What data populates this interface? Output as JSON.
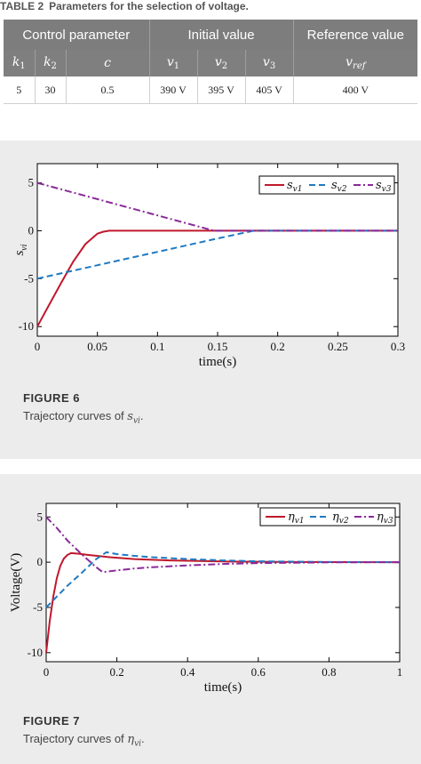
{
  "table": {
    "number": "TABLE 2",
    "title": "Parameters for the selection of voltage.",
    "group_headers": [
      "Control parameter",
      "Initial value",
      "Reference value"
    ],
    "symbols": {
      "k1": {
        "base": "k",
        "sub": "1"
      },
      "k2": {
        "base": "k",
        "sub": "2"
      },
      "c": {
        "base": "c",
        "sub": ""
      },
      "v1": {
        "base": "v",
        "sub": "1"
      },
      "v2": {
        "base": "v",
        "sub": "2"
      },
      "v3": {
        "base": "v",
        "sub": "3"
      },
      "vref": {
        "base": "v",
        "sub": "ref"
      }
    },
    "row": [
      "5",
      "30",
      "0.5",
      "390 V",
      "395 V",
      "405 V",
      "400 V"
    ]
  },
  "figure6": {
    "label": "FIGURE 6",
    "caption_prefix": "Trajectory curves of ",
    "caption_symbol": "s",
    "caption_sub": "vi",
    "caption_suffix": ".",
    "chart_data": {
      "type": "line",
      "xlabel": "time(s)",
      "ylabel": "s_vi",
      "xlim": [
        0,
        0.3
      ],
      "ylim": [
        -11,
        7
      ],
      "xticks": [
        "0",
        "0.05",
        "0.1",
        "0.15",
        "0.2",
        "0.25",
        "0.3"
      ],
      "yticks": [
        "5",
        "0",
        "-5",
        "-10"
      ],
      "grid": false,
      "legend_position": "top-right",
      "series": [
        {
          "name": "s_v1",
          "color": "#c0182c",
          "dash": "solid",
          "x": [
            0,
            0.01,
            0.02,
            0.03,
            0.04,
            0.05,
            0.055,
            0.06,
            0.07,
            0.1,
            0.2,
            0.3
          ],
          "y": [
            -10,
            -7.7,
            -5.4,
            -3.2,
            -1.4,
            -0.3,
            -0.1,
            0,
            0,
            0,
            0,
            0
          ]
        },
        {
          "name": "s_v2",
          "color": "#1f7ac2",
          "dash": "dashed",
          "x": [
            0,
            0.05,
            0.1,
            0.15,
            0.18,
            0.2,
            0.3
          ],
          "y": [
            -5,
            -3.6,
            -2.2,
            -0.8,
            0,
            0,
            0
          ]
        },
        {
          "name": "s_v3",
          "color": "#8a2a9a",
          "dash": "dashdot",
          "x": [
            0,
            0.05,
            0.1,
            0.147,
            0.2,
            0.3
          ],
          "y": [
            5,
            3.3,
            1.6,
            0,
            0,
            0
          ]
        }
      ]
    }
  },
  "figure7": {
    "label": "FIGURE 7",
    "caption_prefix": "Trajectory curves of ",
    "caption_symbol": "η",
    "caption_sub": "vi",
    "caption_suffix": ".",
    "chart_data": {
      "type": "line",
      "xlabel": "time(s)",
      "ylabel": "Voltage(V)",
      "xlim": [
        0,
        1
      ],
      "ylim": [
        -11,
        6.5
      ],
      "xticks": [
        "0",
        "0.2",
        "0.4",
        "0.6",
        "0.8",
        "1"
      ],
      "yticks": [
        "5",
        "0",
        "-5",
        "-10"
      ],
      "grid": false,
      "legend_position": "top-right",
      "series": [
        {
          "name": "η_v1",
          "color": "#c0182c",
          "dash": "solid",
          "x": [
            0,
            0.01,
            0.02,
            0.03,
            0.04,
            0.05,
            0.06,
            0.07,
            0.09,
            0.12,
            0.18,
            0.25,
            0.35,
            0.5,
            0.7,
            1.0
          ],
          "y": [
            -10,
            -6.5,
            -3.8,
            -1.8,
            -0.4,
            0.4,
            0.8,
            1.0,
            0.95,
            0.8,
            0.55,
            0.35,
            0.2,
            0.08,
            0.02,
            0
          ]
        },
        {
          "name": "η_v2",
          "color": "#1f7ac2",
          "dash": "dashed",
          "x": [
            0,
            0.03,
            0.06,
            0.1,
            0.14,
            0.17,
            0.2,
            0.25,
            0.3,
            0.4,
            0.5,
            0.6,
            0.8,
            1.0
          ],
          "y": [
            -5,
            -3.8,
            -2.6,
            -1.2,
            0.3,
            1.1,
            0.9,
            0.7,
            0.55,
            0.35,
            0.2,
            0.1,
            0.02,
            0
          ]
        },
        {
          "name": "η_v3",
          "color": "#8a2a9a",
          "dash": "dashdot",
          "x": [
            0,
            0.03,
            0.06,
            0.1,
            0.14,
            0.16,
            0.2,
            0.25,
            0.3,
            0.4,
            0.5,
            0.6,
            0.8,
            1.0
          ],
          "y": [
            5,
            3.8,
            2.4,
            0.9,
            -0.5,
            -1.1,
            -0.9,
            -0.7,
            -0.55,
            -0.35,
            -0.2,
            -0.1,
            -0.02,
            0
          ]
        }
      ]
    }
  }
}
